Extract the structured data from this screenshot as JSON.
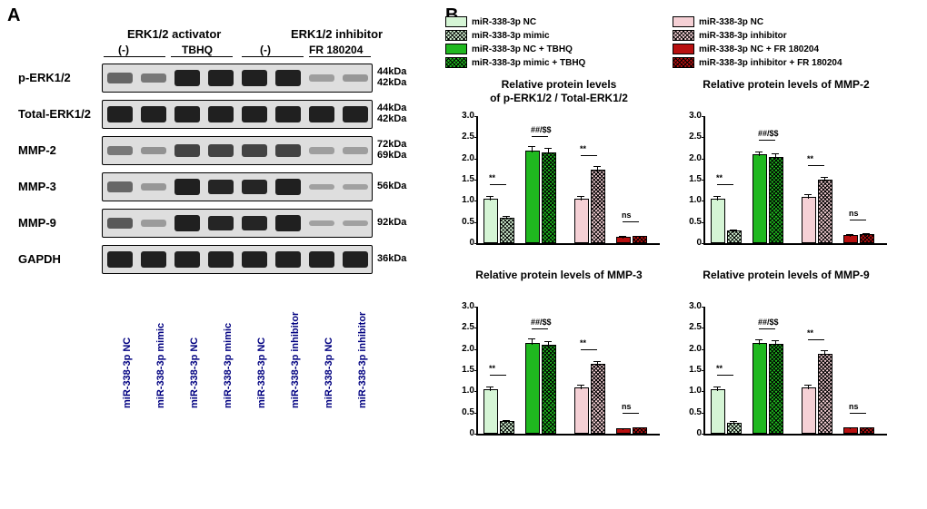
{
  "panelA_letter": "A",
  "panelB_letter": "B",
  "panelA": {
    "header": {
      "activator": "ERK1/2 activator",
      "inhibitor": "ERK1/2 inhibitor",
      "sub_minus1": "(-)",
      "sub_tbhq": "TBHQ",
      "sub_minus2": "(-)",
      "sub_fr": "FR 180204"
    },
    "rows": [
      {
        "label": "p-ERK1/2",
        "kda": "44kDa\n42kDa",
        "intens": [
          0.4,
          0.3,
          0.8,
          0.8,
          0.8,
          0.8,
          0.08,
          0.12
        ]
      },
      {
        "label": "Total-ERK1/2",
        "kda": "44kDa\n42kDa",
        "intens": [
          0.8,
          0.8,
          0.8,
          0.8,
          0.8,
          0.8,
          0.8,
          0.8
        ]
      },
      {
        "label": "MMP-2",
        "kda": "72kDa\n69kDa",
        "intens": [
          0.3,
          0.15,
          0.6,
          0.6,
          0.6,
          0.6,
          0.08,
          0.08
        ]
      },
      {
        "label": "MMP-3",
        "kda": "56kDa",
        "intens": [
          0.4,
          0.12,
          0.8,
          0.78,
          0.78,
          0.8,
          0.07,
          0.07
        ]
      },
      {
        "label": "MMP-9",
        "kda": "92kDa",
        "intens": [
          0.48,
          0.1,
          0.8,
          0.78,
          0.78,
          0.8,
          0.07,
          0.07
        ]
      },
      {
        "label": "GAPDH",
        "kda": "36kDa",
        "intens": [
          0.8,
          0.8,
          0.8,
          0.8,
          0.8,
          0.8,
          0.8,
          0.8
        ]
      }
    ],
    "lanes": [
      "miR-338-3p NC",
      "miR-338-3p mimic",
      "miR-338-3p NC",
      "miR-338-3p mimic",
      "miR-338-3p NC",
      "miR-338-3p inhibitor",
      "miR-338-3p NC",
      "miR-338-3p inhibitor"
    ]
  },
  "panelB": {
    "legend_left": [
      {
        "text": "miR-338-3p NC",
        "fill": "#d5f5d5",
        "hatch": false
      },
      {
        "text": "miR-338-3p mimic",
        "fill": "#d5f5d5",
        "hatch": true
      },
      {
        "text": "miR-338-3p NC + TBHQ",
        "fill": "#1fb81f",
        "hatch": false
      },
      {
        "text": "miR-338-3p mimic + TBHQ",
        "fill": "#1fb81f",
        "hatch": true
      }
    ],
    "legend_right": [
      {
        "text": "miR-338-3p NC",
        "fill": "#f5d0d5",
        "hatch": false
      },
      {
        "text": "miR-338-3p inhibitor",
        "fill": "#f5d0d5",
        "hatch": true
      },
      {
        "text": "miR-338-3p NC + FR 180204",
        "fill": "#b81010",
        "hatch": false
      },
      {
        "text": "miR-338-3p inhibitor + FR 180204",
        "fill": "#b81010",
        "hatch": true
      }
    ],
    "ymax": 3.0,
    "yticks": [
      "0",
      "0.5",
      "1.0",
      "1.5",
      "2.0",
      "2.5",
      "3.0"
    ],
    "charts": [
      {
        "title": "Relative protein levels\nof p-ERK1/2 / Total-ERK1/2",
        "bars": [
          {
            "v": 1.0,
            "e": 0.1,
            "fill": "#d5f5d5",
            "hatch": false
          },
          {
            "v": 0.55,
            "e": 0.07,
            "fill": "#d5f5d5",
            "hatch": true
          },
          {
            "v": 2.15,
            "e": 0.12,
            "fill": "#1fb81f",
            "hatch": false
          },
          {
            "v": 2.1,
            "e": 0.12,
            "fill": "#1fb81f",
            "hatch": true
          },
          {
            "v": 1.0,
            "e": 0.1,
            "fill": "#f5d0d5",
            "hatch": false
          },
          {
            "v": 1.7,
            "e": 0.1,
            "fill": "#f5d0d5",
            "hatch": true
          },
          {
            "v": 0.1,
            "e": 0.04,
            "fill": "#b81010",
            "hatch": false
          },
          {
            "v": 0.12,
            "e": 0.04,
            "fill": "#b81010",
            "hatch": true
          }
        ],
        "sig": [
          {
            "t": "**",
            "g": 0
          },
          {
            "t": "##/$$",
            "g": 1
          },
          {
            "t": "**",
            "g": 2
          },
          {
            "t": "ns",
            "g": 3
          }
        ]
      },
      {
        "title": "Relative protein levels of MMP-2",
        "bars": [
          {
            "v": 1.0,
            "e": 0.1,
            "fill": "#d5f5d5",
            "hatch": false
          },
          {
            "v": 0.25,
            "e": 0.05,
            "fill": "#d5f5d5",
            "hatch": true
          },
          {
            "v": 2.05,
            "e": 0.1,
            "fill": "#1fb81f",
            "hatch": false
          },
          {
            "v": 2.0,
            "e": 0.1,
            "fill": "#1fb81f",
            "hatch": true
          },
          {
            "v": 1.05,
            "e": 0.08,
            "fill": "#f5d0d5",
            "hatch": false
          },
          {
            "v": 1.45,
            "e": 0.1,
            "fill": "#f5d0d5",
            "hatch": true
          },
          {
            "v": 0.15,
            "e": 0.04,
            "fill": "#b81010",
            "hatch": false
          },
          {
            "v": 0.18,
            "e": 0.04,
            "fill": "#b81010",
            "hatch": true
          }
        ],
        "sig": [
          {
            "t": "**",
            "g": 0
          },
          {
            "t": "##/$$",
            "g": 1
          },
          {
            "t": "**",
            "g": 2
          },
          {
            "t": "ns",
            "g": 3
          }
        ]
      },
      {
        "title": "Relative protein levels of MMP-3",
        "bars": [
          {
            "v": 1.0,
            "e": 0.1,
            "fill": "#d5f5d5",
            "hatch": false
          },
          {
            "v": 0.25,
            "e": 0.05,
            "fill": "#d5f5d5",
            "hatch": true
          },
          {
            "v": 2.1,
            "e": 0.12,
            "fill": "#1fb81f",
            "hatch": false
          },
          {
            "v": 2.05,
            "e": 0.12,
            "fill": "#1fb81f",
            "hatch": true
          },
          {
            "v": 1.05,
            "e": 0.08,
            "fill": "#f5d0d5",
            "hatch": false
          },
          {
            "v": 1.6,
            "e": 0.1,
            "fill": "#f5d0d5",
            "hatch": true
          },
          {
            "v": 0.08,
            "e": 0.03,
            "fill": "#b81010",
            "hatch": false
          },
          {
            "v": 0.1,
            "e": 0.03,
            "fill": "#b81010",
            "hatch": true
          }
        ],
        "sig": [
          {
            "t": "**",
            "g": 0
          },
          {
            "t": "##/$$",
            "g": 1
          },
          {
            "t": "**",
            "g": 2
          },
          {
            "t": "ns",
            "g": 3
          }
        ]
      },
      {
        "title": "Relative protein levels of MMP-9",
        "bars": [
          {
            "v": 1.0,
            "e": 0.1,
            "fill": "#d5f5d5",
            "hatch": false
          },
          {
            "v": 0.22,
            "e": 0.05,
            "fill": "#d5f5d5",
            "hatch": true
          },
          {
            "v": 2.1,
            "e": 0.1,
            "fill": "#1fb81f",
            "hatch": false
          },
          {
            "v": 2.08,
            "e": 0.1,
            "fill": "#1fb81f",
            "hatch": true
          },
          {
            "v": 1.05,
            "e": 0.08,
            "fill": "#f5d0d5",
            "hatch": false
          },
          {
            "v": 1.85,
            "e": 0.1,
            "fill": "#f5d0d5",
            "hatch": true
          },
          {
            "v": 0.1,
            "e": 0.03,
            "fill": "#b81010",
            "hatch": false
          },
          {
            "v": 0.1,
            "e": 0.03,
            "fill": "#b81010",
            "hatch": true
          }
        ],
        "sig": [
          {
            "t": "**",
            "g": 0
          },
          {
            "t": "##/$$",
            "g": 1
          },
          {
            "t": "**",
            "g": 2
          },
          {
            "t": "ns",
            "g": 3
          }
        ]
      }
    ]
  }
}
